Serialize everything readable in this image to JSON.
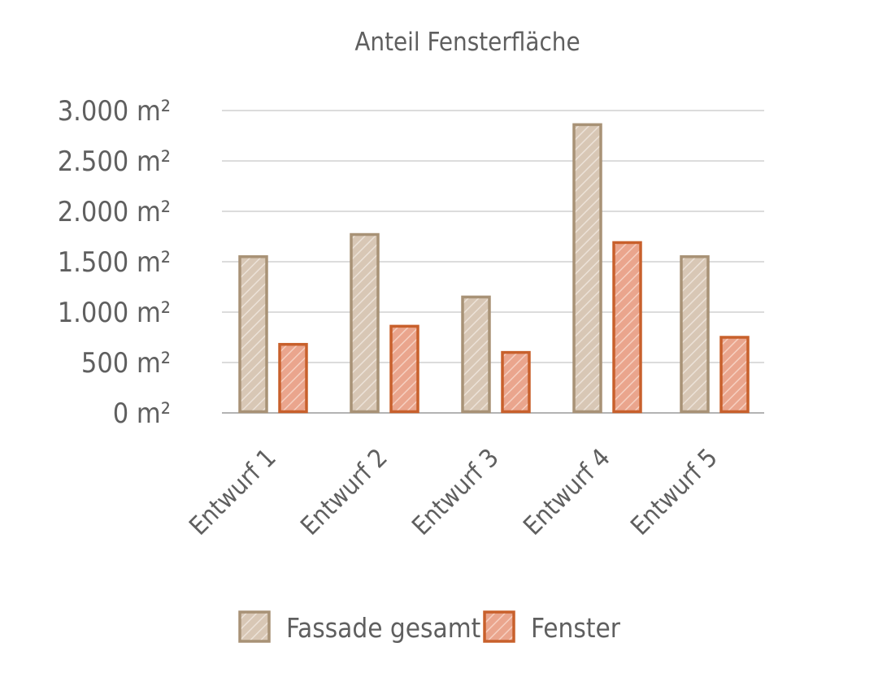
{
  "chart_data": {
    "type": "bar",
    "title": "Anteil Fensterfläche",
    "categories": [
      "Entwurf 1",
      "Entwurf 2",
      "Entwurf 3",
      "Entwurf 4",
      "Entwurf 5"
    ],
    "series": [
      {
        "name": "Fassade gesamt",
        "values": [
          1550,
          1770,
          1150,
          2860,
          1550
        ]
      },
      {
        "name": "Fenster",
        "values": [
          680,
          860,
          600,
          1690,
          750
        ]
      }
    ],
    "ylim": [
      0,
      3000
    ],
    "y_ticks": [
      0,
      500,
      1000,
      1500,
      2000,
      2500,
      3000
    ],
    "y_tick_labels": [
      "0 m²",
      "500 m²",
      "1.000 m²",
      "1.500 m²",
      "2.000 m²",
      "2.500 m²",
      "3.000 m²"
    ],
    "grid": true,
    "legend_position": "bottom",
    "colors": {
      "Fassade gesamt": {
        "fill": "#d8c7b5",
        "stroke": "#a89276",
        "hatch": "#ece2d8"
      },
      "Fenster": {
        "fill": "#eaa58d",
        "stroke": "#c8602c",
        "hatch": "#f6d0c1"
      }
    }
  }
}
